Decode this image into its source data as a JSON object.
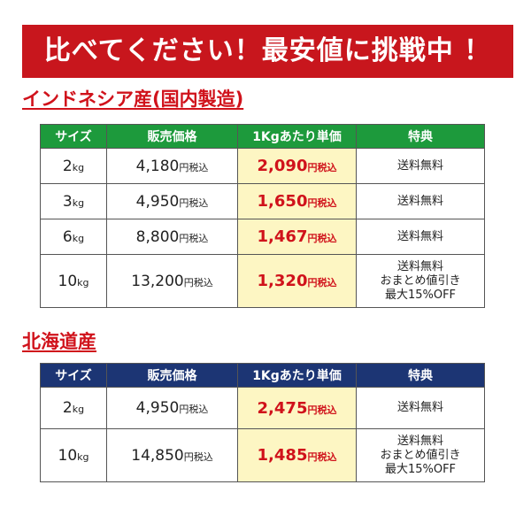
{
  "banner": "比べてください！最安値に挑戦中 ！",
  "sections": [
    {
      "title": "インドネシア産(国内製造)",
      "header": [
        "サイズ",
        "販売価格",
        "1Kgあたり単価",
        "特典"
      ],
      "rows": [
        {
          "size": {
            "value": "2",
            "unit": "kg"
          },
          "price": {
            "value": "4,180",
            "unit": "円税込"
          },
          "unit_price": {
            "value": "2,090",
            "unit": "円税込"
          },
          "benefit": [
            "送料無料"
          ]
        },
        {
          "size": {
            "value": "3",
            "unit": "kg"
          },
          "price": {
            "value": "4,950",
            "unit": "円税込"
          },
          "unit_price": {
            "value": "1,650",
            "unit": "円税込"
          },
          "benefit": [
            "送料無料"
          ]
        },
        {
          "size": {
            "value": "6",
            "unit": "kg"
          },
          "price": {
            "value": "8,800",
            "unit": "円税込"
          },
          "unit_price": {
            "value": "1,467",
            "unit": "円税込"
          },
          "benefit": [
            "送料無料"
          ]
        },
        {
          "size": {
            "value": "10",
            "unit": "kg"
          },
          "price": {
            "value": "13,200",
            "unit": "円税込"
          },
          "unit_price": {
            "value": "1,320",
            "unit": "円税込"
          },
          "benefit": [
            "送料無料",
            "おまとめ値引き",
            "最大15%OFF"
          ]
        }
      ]
    },
    {
      "title": "北海道産",
      "header": [
        "サイズ",
        "販売価格",
        "1Kgあたり単価",
        "特典"
      ],
      "rows": [
        {
          "size": {
            "value": "2",
            "unit": "kg"
          },
          "price": {
            "value": "4,950",
            "unit": "円税込"
          },
          "unit_price": {
            "value": "2,475",
            "unit": "円税込"
          },
          "benefit": [
            "送料無料"
          ]
        },
        {
          "size": {
            "value": "10",
            "unit": "kg"
          },
          "price": {
            "value": "14,850",
            "unit": "円税込"
          },
          "unit_price": {
            "value": "1,485",
            "unit": "円税込"
          },
          "benefit": [
            "送料無料",
            "おまとめ値引き",
            "最大15%OFF"
          ]
        }
      ]
    }
  ]
}
